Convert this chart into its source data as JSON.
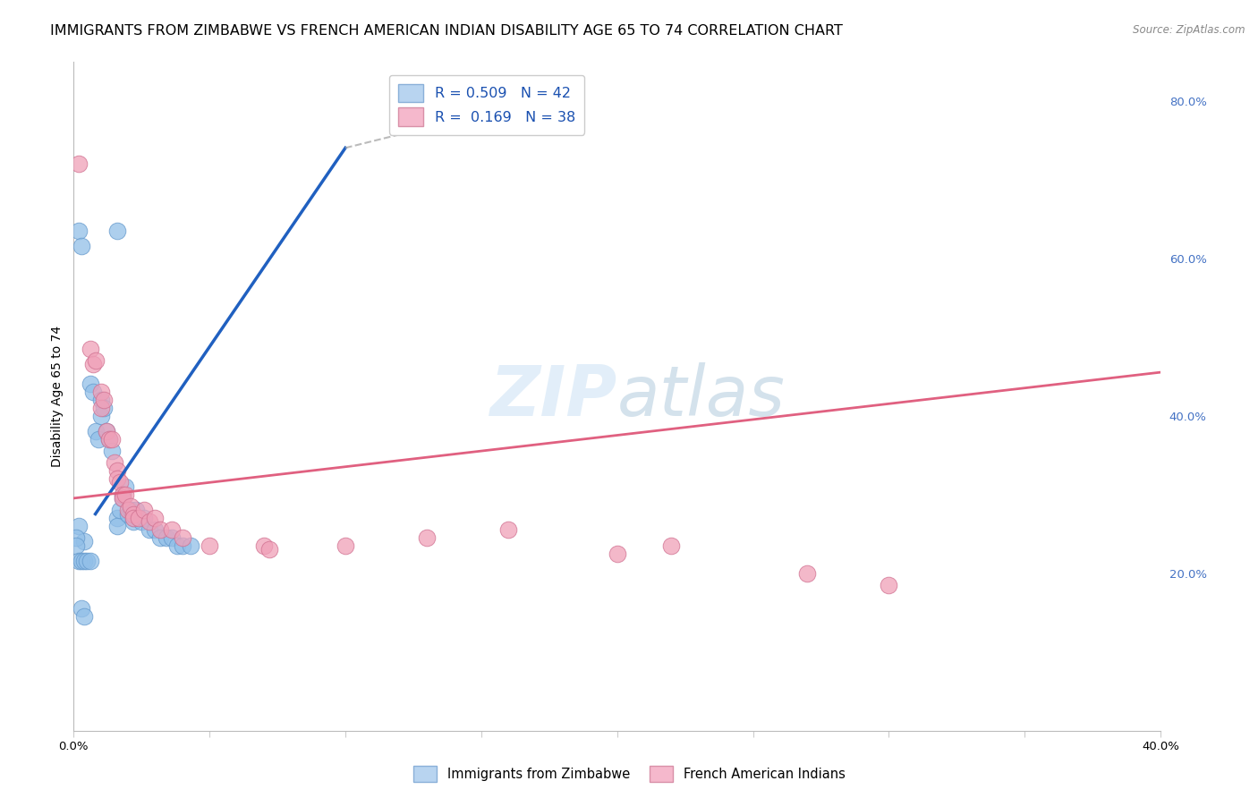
{
  "title": "IMMIGRANTS FROM ZIMBABWE VS FRENCH AMERICAN INDIAN DISABILITY AGE 65 TO 74 CORRELATION CHART",
  "source": "Source: ZipAtlas.com",
  "ylabel": "Disability Age 65 to 74",
  "xlim": [
    0.0,
    0.4
  ],
  "ylim": [
    0.0,
    0.85
  ],
  "x_ticks": [
    0.0,
    0.05,
    0.1,
    0.15,
    0.2,
    0.25,
    0.3,
    0.35,
    0.4
  ],
  "y_ticks_right": [
    0.0,
    0.2,
    0.4,
    0.6,
    0.8
  ],
  "watermark": "ZIPatlas",
  "blue_scatter": [
    [
      0.002,
      0.635
    ],
    [
      0.003,
      0.615
    ],
    [
      0.002,
      0.26
    ],
    [
      0.004,
      0.24
    ],
    [
      0.016,
      0.635
    ],
    [
      0.006,
      0.44
    ],
    [
      0.007,
      0.43
    ],
    [
      0.008,
      0.38
    ],
    [
      0.009,
      0.37
    ],
    [
      0.01,
      0.42
    ],
    [
      0.01,
      0.4
    ],
    [
      0.011,
      0.41
    ],
    [
      0.012,
      0.38
    ],
    [
      0.013,
      0.37
    ],
    [
      0.014,
      0.355
    ],
    [
      0.016,
      0.27
    ],
    [
      0.016,
      0.26
    ],
    [
      0.017,
      0.28
    ],
    [
      0.018,
      0.3
    ],
    [
      0.018,
      0.295
    ],
    [
      0.019,
      0.31
    ],
    [
      0.02,
      0.275
    ],
    [
      0.021,
      0.28
    ],
    [
      0.022,
      0.27
    ],
    [
      0.022,
      0.265
    ],
    [
      0.023,
      0.28
    ],
    [
      0.025,
      0.265
    ],
    [
      0.026,
      0.27
    ],
    [
      0.028,
      0.255
    ],
    [
      0.03,
      0.255
    ],
    [
      0.032,
      0.245
    ],
    [
      0.034,
      0.245
    ],
    [
      0.036,
      0.245
    ],
    [
      0.038,
      0.235
    ],
    [
      0.04,
      0.235
    ],
    [
      0.043,
      0.235
    ],
    [
      0.001,
      0.245
    ],
    [
      0.001,
      0.235
    ],
    [
      0.002,
      0.215
    ],
    [
      0.003,
      0.215
    ],
    [
      0.004,
      0.215
    ],
    [
      0.005,
      0.215
    ],
    [
      0.006,
      0.215
    ],
    [
      0.003,
      0.155
    ],
    [
      0.004,
      0.145
    ]
  ],
  "pink_scatter": [
    [
      0.002,
      0.72
    ],
    [
      0.006,
      0.485
    ],
    [
      0.007,
      0.465
    ],
    [
      0.008,
      0.47
    ],
    [
      0.01,
      0.43
    ],
    [
      0.01,
      0.41
    ],
    [
      0.011,
      0.42
    ],
    [
      0.012,
      0.38
    ],
    [
      0.013,
      0.37
    ],
    [
      0.014,
      0.37
    ],
    [
      0.015,
      0.34
    ],
    [
      0.016,
      0.33
    ],
    [
      0.016,
      0.32
    ],
    [
      0.017,
      0.315
    ],
    [
      0.018,
      0.3
    ],
    [
      0.018,
      0.295
    ],
    [
      0.019,
      0.3
    ],
    [
      0.02,
      0.28
    ],
    [
      0.021,
      0.285
    ],
    [
      0.022,
      0.275
    ],
    [
      0.022,
      0.27
    ],
    [
      0.024,
      0.27
    ],
    [
      0.026,
      0.28
    ],
    [
      0.028,
      0.265
    ],
    [
      0.03,
      0.27
    ],
    [
      0.032,
      0.255
    ],
    [
      0.036,
      0.255
    ],
    [
      0.04,
      0.245
    ],
    [
      0.05,
      0.235
    ],
    [
      0.07,
      0.235
    ],
    [
      0.072,
      0.23
    ],
    [
      0.1,
      0.235
    ],
    [
      0.13,
      0.245
    ],
    [
      0.16,
      0.255
    ],
    [
      0.2,
      0.225
    ],
    [
      0.22,
      0.235
    ],
    [
      0.27,
      0.2
    ],
    [
      0.3,
      0.185
    ]
  ],
  "blue_line_x": [
    0.008,
    0.1
  ],
  "blue_line_y": [
    0.275,
    0.74
  ],
  "pink_line_x": [
    0.0,
    0.4
  ],
  "pink_line_y": [
    0.295,
    0.455
  ],
  "dashed_line_x": [
    0.1,
    0.17
  ],
  "dashed_line_y": [
    0.74,
    0.8
  ],
  "scatter_blue_color": "#92bfe8",
  "scatter_blue_edge": "#6499cc",
  "scatter_pink_color": "#f0a0b8",
  "scatter_pink_edge": "#d07090",
  "line_blue_color": "#2060c0",
  "line_pink_color": "#e06080",
  "grid_color": "#cccccc",
  "title_fontsize": 11.5,
  "axis_label_fontsize": 10,
  "tick_fontsize": 9.5,
  "right_tick_color": "#4472c4",
  "background_color": "#ffffff"
}
